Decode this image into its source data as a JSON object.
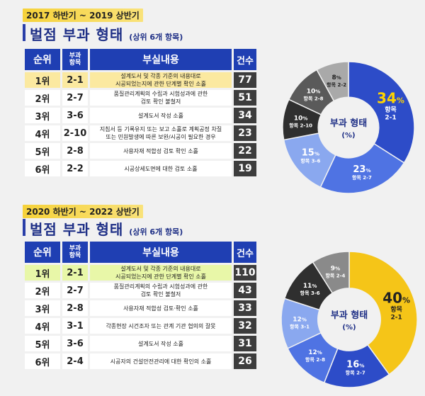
{
  "sections": [
    {
      "period": "2017 하반기 ~ 2019 상반기",
      "title": "벌점 부과 형태",
      "subtitle": "(상위 6개 항목)",
      "headers": {
        "rank": "순위",
        "code": "부과\n항목",
        "desc": "부실내용",
        "count": "건수"
      },
      "rows": [
        {
          "rank": "1위",
          "code": "2-1",
          "desc": "설계도서 및 각종 기준의 내용대로\n시공되었는지에 관한 단계별 확인 소홀",
          "count": "77"
        },
        {
          "rank": "2위",
          "code": "2-7",
          "desc": "품질관리계획의 수립과 시험성과에 관한\n검토 확인 불철저",
          "count": "51"
        },
        {
          "rank": "3위",
          "code": "3-6",
          "desc": "설계도서 작성 소홀",
          "count": "34"
        },
        {
          "rank": "4위",
          "code": "2-10",
          "desc": "지침서 등 기록유지 또는 보고 소홀로 계획공정 차질\n또는 민원발생에 따른 보완/시공이 필요한 경우",
          "count": "23"
        },
        {
          "rank": "5위",
          "code": "2-8",
          "desc": "사용자재 적합성 검토 확인 소홀",
          "count": "22"
        },
        {
          "rank": "6위",
          "code": "2-2",
          "desc": "시공상세도면에 대한 검토 소홀",
          "count": "19"
        }
      ],
      "center_title": "부과 형태",
      "center_unit": "(%)"
    },
    {
      "period": "2020 하반기 ~ 2022 상반기",
      "title": "벌점 부과 형태",
      "subtitle": "(상위 6개 항목)",
      "headers": {
        "rank": "순위",
        "code": "부과\n항목",
        "desc": "부실내용",
        "count": "건수"
      },
      "rows": [
        {
          "rank": "1위",
          "code": "2-1",
          "desc": "설계도서 및 각종 기준의 내용대로\n시공되었는지에 관한 단계별 확인 소홀",
          "count": "110"
        },
        {
          "rank": "2위",
          "code": "2-7",
          "desc": "품질관리계획의 수립과 시험성과에 관한\n검토 확인 불철저",
          "count": "43"
        },
        {
          "rank": "3위",
          "code": "2-8",
          "desc": "사용자재 적합성 검토·확인 소홀",
          "count": "33"
        },
        {
          "rank": "4위",
          "code": "3-1",
          "desc": "각종현장 시건조자 또는 관계 기관 협의의 잘못",
          "count": "32"
        },
        {
          "rank": "5위",
          "code": "3-6",
          "desc": "설계도서 작성 소홀",
          "count": "31"
        },
        {
          "rank": "6위",
          "code": "2-4",
          "desc": "시공자의 건설안전관리에 대한 확인의 소홀",
          "count": "26"
        }
      ],
      "center_title": "부과 형태",
      "center_unit": "(%)"
    }
  ],
  "chart_data": [
    {
      "type": "pie",
      "center_title": "부과 형태",
      "center_unit": "(%)",
      "slices": [
        {
          "label": "항목 2-1",
          "value": 34,
          "color": "#2d4cc8"
        },
        {
          "label": "항목 2-7",
          "value": 23,
          "color": "#4f73e3"
        },
        {
          "label": "항목 3-6",
          "value": 15,
          "color": "#8aa8ef"
        },
        {
          "label": "항목 2-10",
          "value": 10,
          "color": "#2f2f2f"
        },
        {
          "label": "항목 2-8",
          "value": 10,
          "color": "#5a5a5a"
        },
        {
          "label": "항목 2-2",
          "value": 8,
          "color": "#a9a9a9"
        }
      ]
    },
    {
      "type": "pie",
      "center_title": "부과 형태",
      "center_unit": "(%)",
      "slices": [
        {
          "label": "항목 2-1",
          "value": 40,
          "color": "#f5c518"
        },
        {
          "label": "항목 2-7",
          "value": 16,
          "color": "#2d4cc8"
        },
        {
          "label": "항목 2-8",
          "value": 12,
          "color": "#4f73e3"
        },
        {
          "label": "항목 3-1",
          "value": 12,
          "color": "#8aa8ef"
        },
        {
          "label": "항목 3-6",
          "value": 11,
          "color": "#2f2f2f"
        },
        {
          "label": "항목 2-4",
          "value": 9,
          "color": "#8a8a8a"
        }
      ]
    }
  ]
}
